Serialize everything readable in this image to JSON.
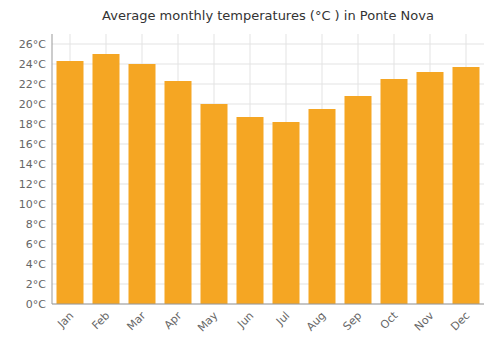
{
  "chart_data": {
    "type": "bar",
    "title": "Average monthly temperatures (°C ) in Ponte Nova",
    "categories": [
      "Jan",
      "Feb",
      "Mar",
      "Apr",
      "May",
      "Jun",
      "Jul",
      "Aug",
      "Sep",
      "Oct",
      "Nov",
      "Dec"
    ],
    "values": [
      24.3,
      25.0,
      24.0,
      22.3,
      20.0,
      18.7,
      18.2,
      19.5,
      20.8,
      22.5,
      23.2,
      23.7
    ],
    "color": "#F5A623",
    "ylim": [
      0,
      27
    ],
    "yticks": [
      {
        "value": 0,
        "label": "0°C"
      },
      {
        "value": 2,
        "label": "2°C"
      },
      {
        "value": 4,
        "label": "4°C"
      },
      {
        "value": 6,
        "label": "6°C"
      },
      {
        "value": 8,
        "label": "8°C"
      },
      {
        "value": 10,
        "label": "10°C"
      },
      {
        "value": 12,
        "label": "12°C"
      },
      {
        "value": 14,
        "label": "14°C"
      },
      {
        "value": 16,
        "label": "16°C"
      },
      {
        "value": 18,
        "label": "18°C"
      },
      {
        "value": 20,
        "label": "20°C"
      },
      {
        "value": 22,
        "label": "22°C"
      },
      {
        "value": 24,
        "label": "24°C"
      },
      {
        "value": 26,
        "label": "26°C"
      }
    ],
    "grid": true
  }
}
